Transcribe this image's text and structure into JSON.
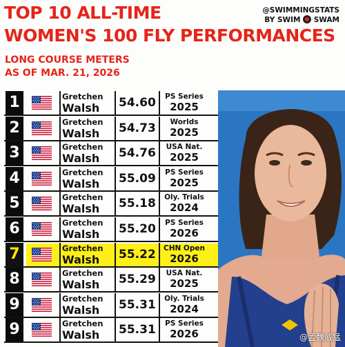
{
  "header": {
    "title_line1": "TOP 10 ALL-TIME",
    "title_line2": "WOMEN'S 100 FLY PERFORMANCES",
    "subtitle1": "LONG COURSE METERS",
    "subtitle2": "AS OF MAR. 21, 2026",
    "credit_handle": "@SWIMMINGSTATS",
    "credit_by": "BY SWIM",
    "credit_brand": "SWAM"
  },
  "watermark": "@孟魏威猛",
  "colors": {
    "title_red": "#e62419",
    "highlight": "#ffef18",
    "rank_bg": "#0c0c0c"
  },
  "rows": [
    {
      "rank": "1",
      "flag": "usa-flag",
      "first": "Gretchen",
      "last": "Walsh",
      "time": "54.60",
      "meet": "PS Series",
      "year": "2025",
      "highlight": false
    },
    {
      "rank": "2",
      "flag": "usa-flag",
      "first": "Gretchen",
      "last": "Walsh",
      "time": "54.73",
      "meet": "Worlds",
      "year": "2025",
      "highlight": false
    },
    {
      "rank": "3",
      "flag": "usa-flag",
      "first": "Gretchen",
      "last": "Walsh",
      "time": "54.76",
      "meet": "USA Nat.",
      "year": "2025",
      "highlight": false
    },
    {
      "rank": "4",
      "flag": "usa-flag",
      "first": "Gretchen",
      "last": "Walsh",
      "time": "55.09",
      "meet": "PS Series",
      "year": "2025",
      "highlight": false
    },
    {
      "rank": "5",
      "flag": "usa-flag",
      "first": "Gretchen",
      "last": "Walsh",
      "time": "55.18",
      "meet": "Oly. Trials",
      "year": "2024",
      "highlight": false
    },
    {
      "rank": "6",
      "flag": "usa-flag",
      "first": "Gretchen",
      "last": "Walsh",
      "time": "55.20",
      "meet": "PS Series",
      "year": "2026",
      "highlight": false
    },
    {
      "rank": "7",
      "flag": "usa-flag",
      "first": "Gretchen",
      "last": "Walsh",
      "time": "55.22",
      "meet": "CHN Open",
      "year": "2026",
      "highlight": true
    },
    {
      "rank": "8",
      "flag": "usa-flag",
      "first": "Gretchen",
      "last": "Walsh",
      "time": "55.29",
      "meet": "USA Nat.",
      "year": "2025",
      "highlight": false
    },
    {
      "rank": "9",
      "flag": "usa-flag",
      "first": "Gretchen",
      "last": "Walsh",
      "time": "55.31",
      "meet": "Oly. Trials",
      "year": "2024",
      "highlight": false
    },
    {
      "rank": "9",
      "flag": "usa-flag",
      "first": "Gretchen",
      "last": "Walsh",
      "time": "55.31",
      "meet": "PS Series",
      "year": "2026",
      "highlight": false
    }
  ]
}
